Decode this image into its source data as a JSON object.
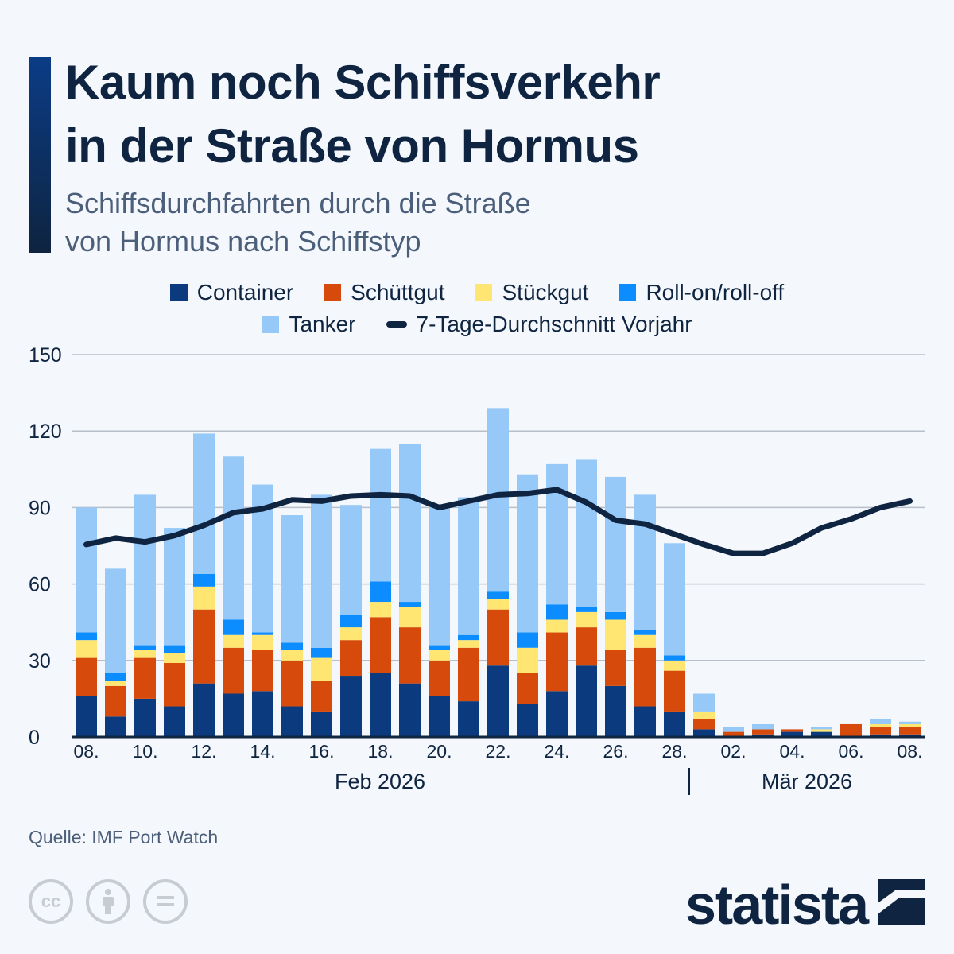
{
  "title_lines": [
    "Kaum noch Schiffsverkehr",
    "in der Straße von Hormus"
  ],
  "subtitle_lines": [
    "Schiffsdurchfahrten durch die Straße",
    "von Hormus nach Schiffstyp"
  ],
  "source": "Quelle: IMF Port Watch",
  "brand": "statista",
  "license_icons": [
    "cc-icon",
    "attribution-icon",
    "no-derivatives-icon"
  ],
  "chart_data": {
    "type": "bar",
    "stacked": true,
    "ylim": [
      0,
      150
    ],
    "yticks": [
      "0",
      "30",
      "60",
      "90",
      "120",
      "150"
    ],
    "grid": true,
    "legend_placement": "top",
    "categories": [
      "08.02",
      "09.02",
      "10.02",
      "11.02",
      "12.02",
      "13.02",
      "14.02",
      "15.02",
      "16.02",
      "17.02",
      "18.02",
      "19.02",
      "20.02",
      "21.02",
      "22.02",
      "23.02",
      "24.02",
      "25.02",
      "26.02",
      "27.02",
      "28.02",
      "01.03",
      "02.03",
      "03.03",
      "04.03",
      "05.03",
      "06.03",
      "07.03",
      "08.03"
    ],
    "xtick_labels": [
      "08.",
      "",
      "10.",
      "",
      "12.",
      "",
      "14.",
      "",
      "16.",
      "",
      "18.",
      "",
      "20.",
      "",
      "22.",
      "",
      "24.",
      "",
      "26.",
      "",
      "28.",
      "",
      "02.",
      "",
      "04.",
      "",
      "06.",
      "",
      "08."
    ],
    "month_labels": [
      "Feb 2026",
      "Mär 2026"
    ],
    "series": [
      {
        "name": "Container",
        "color": "#0b3a7e",
        "values": [
          16,
          8,
          15,
          12,
          21,
          17,
          18,
          12,
          10,
          24,
          25,
          21,
          16,
          14,
          28,
          13,
          18,
          28,
          20,
          12,
          10,
          3,
          0,
          1,
          2,
          2,
          0,
          1,
          1
        ]
      },
      {
        "name": "Schüttgut",
        "color": "#d64b0c",
        "values": [
          15,
          12,
          16,
          17,
          29,
          18,
          16,
          18,
          12,
          14,
          22,
          22,
          14,
          21,
          22,
          12,
          23,
          15,
          14,
          23,
          16,
          4,
          2,
          2,
          1,
          0,
          5,
          3,
          3
        ]
      },
      {
        "name": "Stückgut",
        "color": "#ffe672",
        "values": [
          7,
          2,
          3,
          4,
          9,
          5,
          6,
          4,
          9,
          5,
          6,
          8,
          4,
          3,
          4,
          10,
          5,
          6,
          12,
          5,
          4,
          3,
          0,
          0,
          0,
          1,
          0,
          1,
          1
        ]
      },
      {
        "name": "Roll-on/roll-off",
        "color": "#0b8cff",
        "values": [
          3,
          3,
          2,
          3,
          5,
          6,
          1,
          3,
          4,
          5,
          8,
          2,
          2,
          2,
          3,
          6,
          6,
          2,
          3,
          2,
          2,
          0,
          0,
          0,
          0,
          0,
          0,
          0,
          0
        ]
      },
      {
        "name": "Tanker",
        "color": "#97c9f8",
        "values": [
          49,
          41,
          59,
          46,
          55,
          64,
          58,
          50,
          60,
          43,
          52,
          62,
          54,
          54,
          72,
          62,
          55,
          58,
          53,
          53,
          44,
          7,
          2,
          2,
          0,
          1,
          0,
          2,
          1
        ]
      }
    ],
    "line": {
      "name": "7-Tage-Durchschnitt Vorjahr",
      "color": "#0e2440",
      "values": [
        75.5,
        78,
        76.5,
        79,
        83,
        88,
        89.5,
        93,
        92.5,
        94.5,
        95,
        94.5,
        90,
        92.5,
        95,
        95.5,
        97,
        92,
        85,
        83.5,
        79.5,
        75.5,
        72,
        72,
        76,
        82,
        85.5,
        90,
        92.5
      ]
    }
  }
}
